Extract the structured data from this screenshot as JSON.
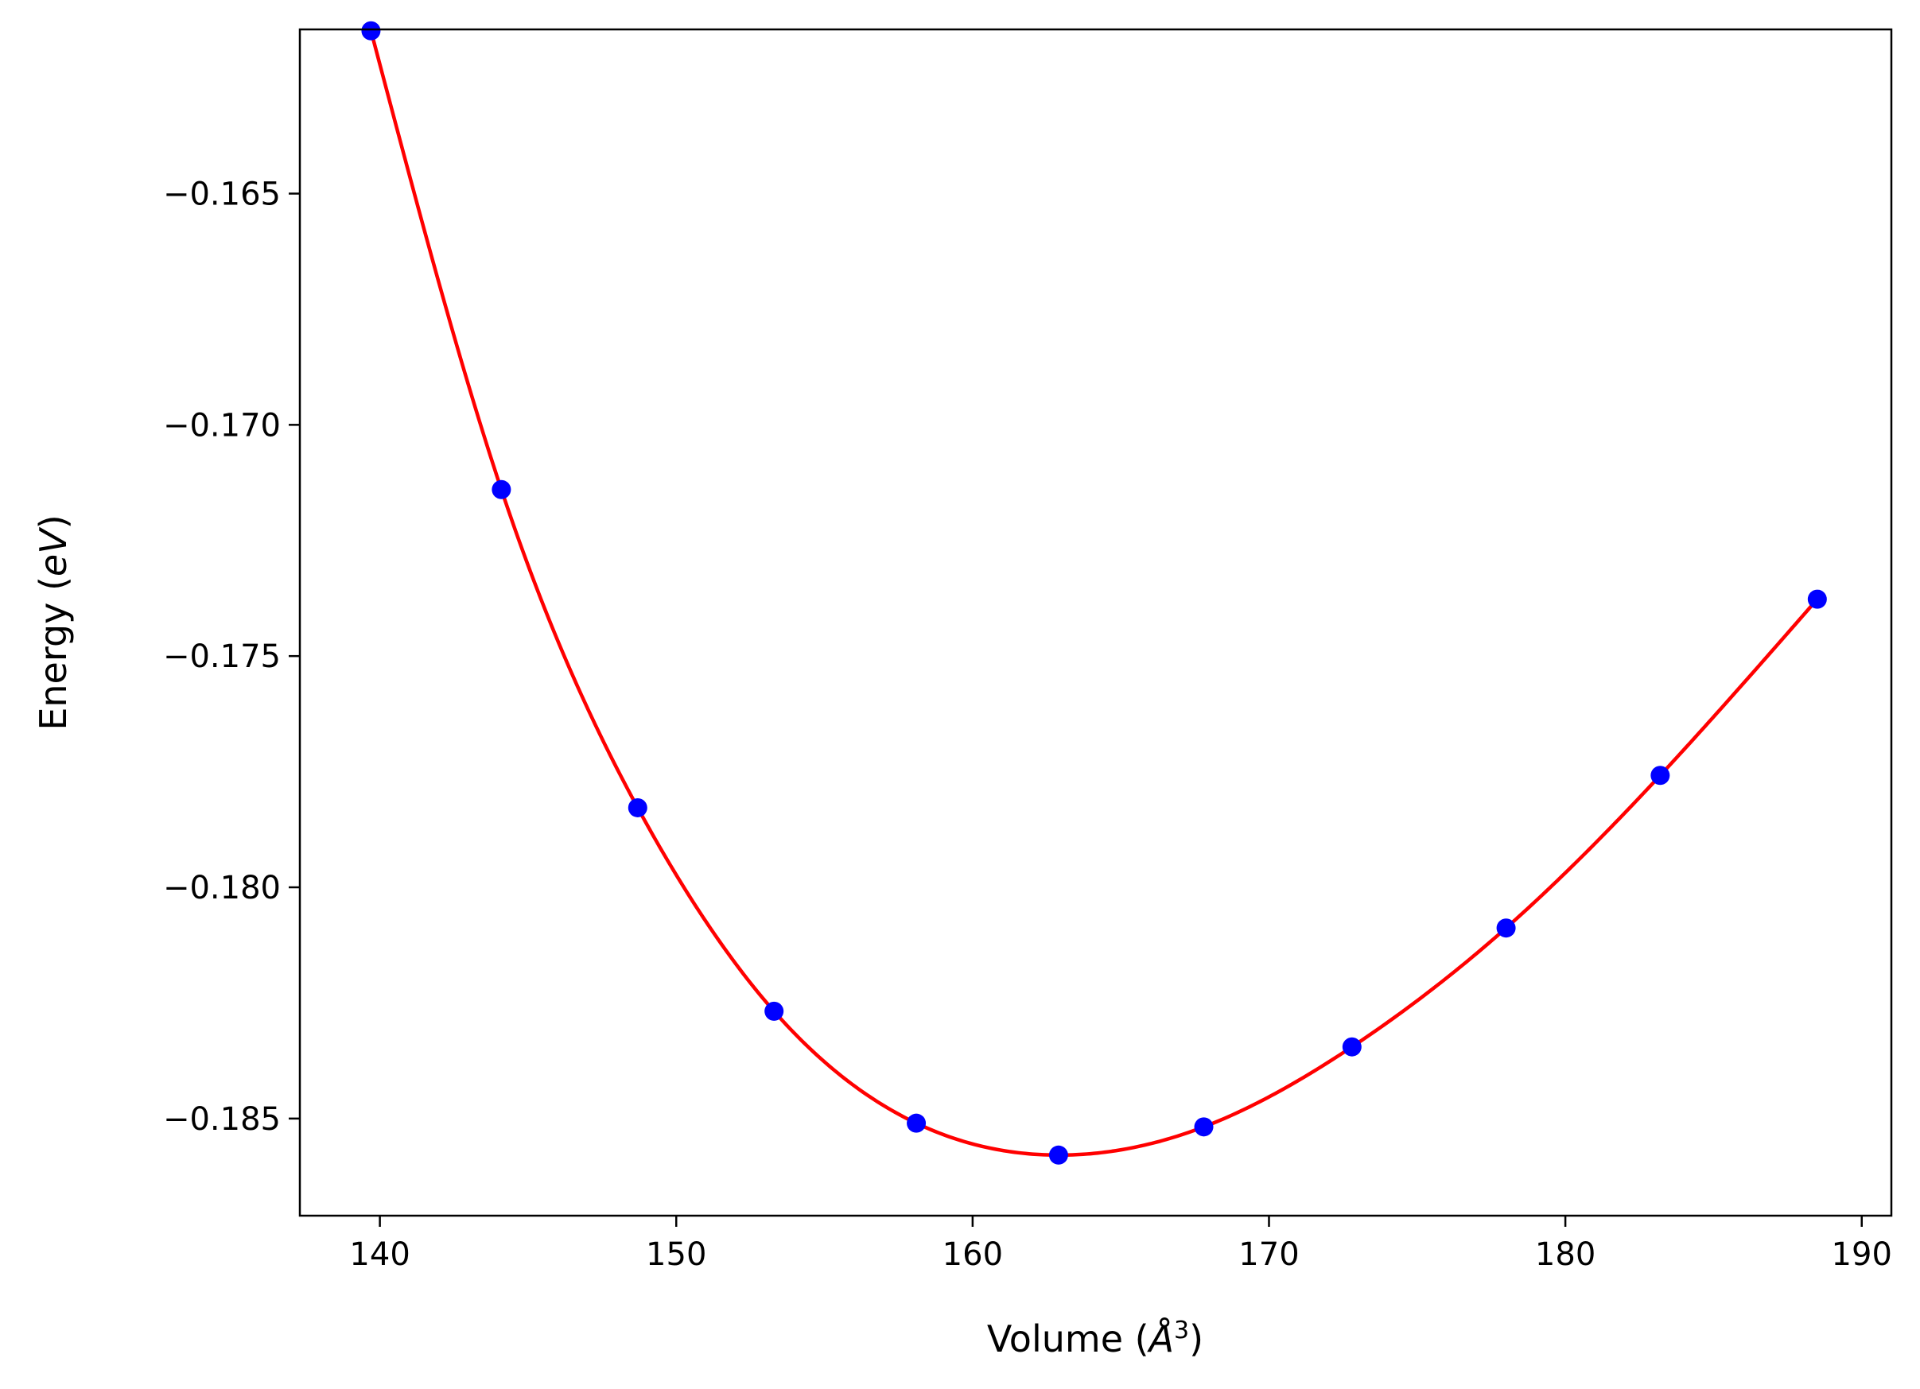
{
  "chart_data": {
    "type": "line",
    "title": "",
    "xlabel": "Volume (Å³)",
    "xlabel_parts": {
      "prefix": "Volume (",
      "symbol": "Å",
      "superscript": "3",
      "suffix": ")"
    },
    "ylabel": "Energy (eV)",
    "ylabel_parts": {
      "prefix": "Energy (",
      "unit": "eV",
      "suffix": ")"
    },
    "xlim": [
      137.3,
      191.0
    ],
    "ylim": [
      -0.1871,
      -0.16145
    ],
    "x_ticks": [
      140,
      150,
      160,
      170,
      180,
      190
    ],
    "x_tick_labels": [
      "140",
      "150",
      "160",
      "170",
      "180",
      "190"
    ],
    "y_ticks": [
      -0.165,
      -0.17,
      -0.175,
      -0.18,
      -0.185
    ],
    "y_tick_labels": [
      "−0.165",
      "−0.170",
      "−0.175",
      "−0.180",
      "−0.185"
    ],
    "grid": false,
    "legend": "none",
    "series": [
      {
        "style": "points",
        "color": "#0000ff",
        "x": [
          139.7,
          144.1,
          148.7,
          153.3,
          158.1,
          162.9,
          167.8,
          172.8,
          178.0,
          183.2,
          188.5
        ],
        "y": [
          -0.16148,
          -0.1714,
          -0.17828,
          -0.18268,
          -0.1851,
          -0.18579,
          -0.18518,
          -0.18345,
          -0.18088,
          -0.17758,
          -0.17377
        ]
      },
      {
        "style": "line",
        "color": "#ff0000"
      }
    ]
  }
}
